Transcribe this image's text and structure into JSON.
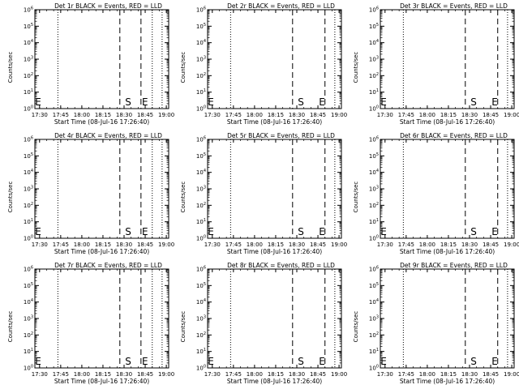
{
  "colors": {
    "background": "#ffffff",
    "foreground": "#000000",
    "events_series": "#000000",
    "lld_series": "#ff0000"
  },
  "chart_data": [
    {
      "type": "line",
      "title": "Det 1r BLACK = Events, RED = LLD",
      "xlabel": "Start Time (08-Jul-16 17:26:40)",
      "ylabel": "Counts/sec",
      "x_ticks": [
        "17:30",
        "17:45",
        "18:00",
        "18:15",
        "18:30",
        "18:45",
        "19:00"
      ],
      "y_ticks": [
        "10^0",
        "10^1",
        "10^2",
        "10^3",
        "10^4",
        "10^5",
        "10^6"
      ],
      "yscale": "log",
      "ylim": [
        1,
        1000000
      ],
      "vertical_lines": [
        {
          "x": "17:43",
          "style": "dotted"
        },
        {
          "x": "18:27",
          "style": "dashed"
        },
        {
          "x": "18:42",
          "style": "dashed"
        },
        {
          "x": "18:50",
          "style": "dotted"
        },
        {
          "x": "18:57",
          "style": "dotted"
        }
      ],
      "markers": [
        {
          "x": "17:26",
          "text": "E"
        },
        {
          "x": "18:30",
          "text": "S"
        },
        {
          "x": "18:42",
          "text": "E"
        }
      ],
      "series": []
    },
    {
      "type": "line",
      "title": "Det 2r BLACK = Events, RED = LLD",
      "xlabel": "Start Time (08-Jul-16 17:26:40)",
      "ylabel": "Counts/sec",
      "x_ticks": [
        "17:30",
        "17:45",
        "18:00",
        "18:15",
        "18:30",
        "18:45",
        "19:00"
      ],
      "y_ticks": [
        "10^0",
        "10^1",
        "10^2",
        "10^3",
        "10^4",
        "10^5",
        "10^6"
      ],
      "yscale": "log",
      "ylim": [
        1,
        1000000
      ],
      "vertical_lines": [
        {
          "x": "17:43",
          "style": "dotted"
        },
        {
          "x": "18:27",
          "style": "dashed"
        },
        {
          "x": "18:50",
          "style": "dashed"
        },
        {
          "x": "18:57",
          "style": "dotted"
        }
      ],
      "markers": [
        {
          "x": "17:26",
          "text": "E"
        },
        {
          "x": "18:30",
          "text": "S"
        },
        {
          "x": "18:45",
          "text": "E"
        }
      ],
      "series": []
    },
    {
      "type": "line",
      "title": "Det 3r BLACK = Events, RED = LLD",
      "xlabel": "Start Time (08-Jul-16 17:26:40)",
      "ylabel": "Counts/sec",
      "x_ticks": [
        "17:30",
        "17:45",
        "18:00",
        "18:15",
        "18:30",
        "18:45",
        "19:00"
      ],
      "y_ticks": [
        "10^0",
        "10^1",
        "10^2",
        "10^3",
        "10^4",
        "10^5",
        "10^6"
      ],
      "yscale": "log",
      "ylim": [
        1,
        1000000
      ],
      "vertical_lines": [
        {
          "x": "17:43",
          "style": "dotted"
        },
        {
          "x": "18:27",
          "style": "dashed"
        },
        {
          "x": "18:50",
          "style": "dashed"
        },
        {
          "x": "18:57",
          "style": "dotted"
        }
      ],
      "markers": [
        {
          "x": "17:26",
          "text": "E"
        },
        {
          "x": "18:30",
          "text": "S"
        },
        {
          "x": "18:45",
          "text": "E"
        }
      ],
      "series": []
    },
    {
      "type": "line",
      "title": "Det 4r BLACK = Events, RED = LLD",
      "xlabel": "Start Time (08-Jul-16 17:26:40)",
      "ylabel": "Counts/sec",
      "x_ticks": [
        "17:30",
        "17:45",
        "18:00",
        "18:15",
        "18:30",
        "18:45",
        "19:00"
      ],
      "y_ticks": [
        "10^0",
        "10^1",
        "10^2",
        "10^3",
        "10^4",
        "10^5",
        "10^6"
      ],
      "yscale": "log",
      "ylim": [
        1,
        1000000
      ],
      "vertical_lines": [
        {
          "x": "17:43",
          "style": "dotted"
        },
        {
          "x": "18:27",
          "style": "dashed"
        },
        {
          "x": "18:42",
          "style": "dashed"
        },
        {
          "x": "18:50",
          "style": "dotted"
        },
        {
          "x": "18:57",
          "style": "dotted"
        }
      ],
      "markers": [
        {
          "x": "17:26",
          "text": "E"
        },
        {
          "x": "18:30",
          "text": "S"
        },
        {
          "x": "18:42",
          "text": "E"
        }
      ],
      "series": []
    },
    {
      "type": "line",
      "title": "Det 5r BLACK = Events, RED = LLD",
      "xlabel": "Start Time (08-Jul-16 17:26:40)",
      "ylabel": "Counts/sec",
      "x_ticks": [
        "17:30",
        "17:45",
        "18:00",
        "18:15",
        "18:30",
        "18:45",
        "19:00"
      ],
      "y_ticks": [
        "10^0",
        "10^1",
        "10^2",
        "10^3",
        "10^4",
        "10^5",
        "10^6"
      ],
      "yscale": "log",
      "ylim": [
        1,
        1000000
      ],
      "vertical_lines": [
        {
          "x": "17:43",
          "style": "dotted"
        },
        {
          "x": "18:27",
          "style": "dashed"
        },
        {
          "x": "18:50",
          "style": "dashed"
        },
        {
          "x": "18:57",
          "style": "dotted"
        }
      ],
      "markers": [
        {
          "x": "17:26",
          "text": "E"
        },
        {
          "x": "18:30",
          "text": "S"
        },
        {
          "x": "18:45",
          "text": "E"
        }
      ],
      "series": []
    },
    {
      "type": "line",
      "title": "Det 6r BLACK = Events, RED = LLD",
      "xlabel": "Start Time (08-Jul-16 17:26:40)",
      "ylabel": "Counts/sec",
      "x_ticks": [
        "17:30",
        "17:45",
        "18:00",
        "18:15",
        "18:30",
        "18:45",
        "19:00"
      ],
      "y_ticks": [
        "10^0",
        "10^1",
        "10^2",
        "10^3",
        "10^4",
        "10^5",
        "10^6"
      ],
      "yscale": "log",
      "ylim": [
        1,
        1000000
      ],
      "vertical_lines": [
        {
          "x": "17:43",
          "style": "dotted"
        },
        {
          "x": "18:27",
          "style": "dashed"
        },
        {
          "x": "18:50",
          "style": "dashed"
        },
        {
          "x": "18:57",
          "style": "dotted"
        }
      ],
      "markers": [
        {
          "x": "17:26",
          "text": "E"
        },
        {
          "x": "18:30",
          "text": "S"
        },
        {
          "x": "18:45",
          "text": "E"
        }
      ],
      "series": []
    },
    {
      "type": "line",
      "title": "Det 7r BLACK = Events, RED = LLD",
      "xlabel": "Start Time (08-Jul-16 17:26:40)",
      "ylabel": "Counts/sec",
      "x_ticks": [
        "17:30",
        "17:45",
        "18:00",
        "18:15",
        "18:30",
        "18:45",
        "19:00"
      ],
      "y_ticks": [
        "10^0",
        "10^1",
        "10^2",
        "10^3",
        "10^4",
        "10^5",
        "10^6"
      ],
      "yscale": "log",
      "ylim": [
        1,
        1000000
      ],
      "vertical_lines": [
        {
          "x": "17:43",
          "style": "dotted"
        },
        {
          "x": "18:27",
          "style": "dashed"
        },
        {
          "x": "18:42",
          "style": "dashed"
        },
        {
          "x": "18:50",
          "style": "dotted"
        },
        {
          "x": "18:57",
          "style": "dotted"
        }
      ],
      "markers": [
        {
          "x": "17:26",
          "text": "E"
        },
        {
          "x": "18:30",
          "text": "S"
        },
        {
          "x": "18:42",
          "text": "E"
        }
      ],
      "series": []
    },
    {
      "type": "line",
      "title": "Det 8r BLACK = Events, RED = LLD",
      "xlabel": "Start Time (08-Jul-16 17:26:40)",
      "ylabel": "Counts/sec",
      "x_ticks": [
        "17:30",
        "17:45",
        "18:00",
        "18:15",
        "18:30",
        "18:45",
        "19:00"
      ],
      "y_ticks": [
        "10^0",
        "10^1",
        "10^2",
        "10^3",
        "10^4",
        "10^5",
        "10^6"
      ],
      "yscale": "log",
      "ylim": [
        1,
        1000000
      ],
      "vertical_lines": [
        {
          "x": "17:43",
          "style": "dotted"
        },
        {
          "x": "18:27",
          "style": "dashed"
        },
        {
          "x": "18:50",
          "style": "dashed"
        },
        {
          "x": "18:57",
          "style": "dotted"
        }
      ],
      "markers": [
        {
          "x": "17:26",
          "text": "E"
        },
        {
          "x": "18:30",
          "text": "S"
        },
        {
          "x": "18:45",
          "text": "E"
        }
      ],
      "series": []
    },
    {
      "type": "line",
      "title": "Det 9r BLACK = Events, RED = LLD",
      "xlabel": "Start Time (08-Jul-16 17:26:40)",
      "ylabel": "Counts/sec",
      "x_ticks": [
        "17:30",
        "17:45",
        "18:00",
        "18:15",
        "18:30",
        "18:45",
        "19:00"
      ],
      "y_ticks": [
        "10^0",
        "10^1",
        "10^2",
        "10^3",
        "10^4",
        "10^5",
        "10^6"
      ],
      "yscale": "log",
      "ylim": [
        1,
        1000000
      ],
      "vertical_lines": [
        {
          "x": "17:43",
          "style": "dotted"
        },
        {
          "x": "18:27",
          "style": "dashed"
        },
        {
          "x": "18:50",
          "style": "dashed"
        },
        {
          "x": "18:57",
          "style": "dotted"
        }
      ],
      "markers": [
        {
          "x": "17:26",
          "text": "E"
        },
        {
          "x": "18:30",
          "text": "S"
        },
        {
          "x": "18:45",
          "text": "E"
        }
      ],
      "series": []
    }
  ]
}
